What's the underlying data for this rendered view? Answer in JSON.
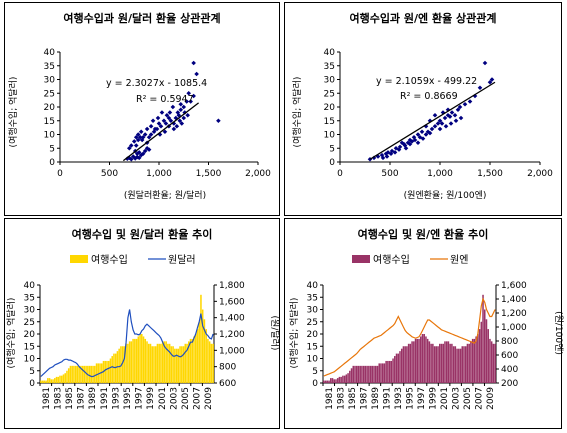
{
  "chart_data": [
    {
      "type": "scatter",
      "title": "여행수입과 원/달러 환율 상관관계",
      "xlabel": "(원달러환율; 원/달러)",
      "ylabel": "(여행수입; 억달러)",
      "xlim": [
        0,
        2000
      ],
      "ylim": [
        0,
        40
      ],
      "xticks": [
        "0",
        "500",
        "1,000",
        "1,500",
        "2,000"
      ],
      "yticks": [
        "0",
        "5",
        "10",
        "15",
        "20",
        "25",
        "30",
        "35",
        "40"
      ],
      "equation": "y = 2.3027x - 1085.4",
      "r2": "R² = 0.5947",
      "trendline": {
        "x": [
          640,
          1400
        ],
        "y": [
          0.5,
          21.5
        ]
      },
      "points": [
        [
          680,
          1.2
        ],
        [
          700,
          1.5
        ],
        [
          720,
          1.0
        ],
        [
          740,
          2.0
        ],
        [
          760,
          1.3
        ],
        [
          780,
          1.8
        ],
        [
          800,
          1.5
        ],
        [
          700,
          5
        ],
        [
          720,
          6
        ],
        [
          750,
          7.5
        ],
        [
          770,
          6
        ],
        [
          790,
          8
        ],
        [
          810,
          9
        ],
        [
          830,
          8
        ],
        [
          760,
          4
        ],
        [
          780,
          3
        ],
        [
          800,
          3.5
        ],
        [
          820,
          2.5
        ],
        [
          840,
          3
        ],
        [
          860,
          4
        ],
        [
          880,
          5
        ],
        [
          900,
          4.5
        ],
        [
          880,
          7
        ],
        [
          900,
          9
        ],
        [
          920,
          10
        ],
        [
          950,
          11
        ],
        [
          980,
          12
        ],
        [
          1000,
          14
        ],
        [
          1020,
          13
        ],
        [
          1050,
          15
        ],
        [
          1080,
          17
        ],
        [
          1100,
          16
        ],
        [
          1120,
          15
        ],
        [
          1150,
          14
        ],
        [
          1170,
          16
        ],
        [
          1190,
          18
        ],
        [
          1200,
          17
        ],
        [
          1220,
          19
        ],
        [
          1250,
          20
        ],
        [
          1280,
          22
        ],
        [
          1300,
          25
        ],
        [
          1320,
          22
        ],
        [
          1350,
          24
        ],
        [
          1380,
          32
        ],
        [
          1350,
          36
        ],
        [
          1150,
          12
        ],
        [
          1100,
          13
        ],
        [
          1060,
          11
        ],
        [
          1010,
          10
        ],
        [
          960,
          12
        ],
        [
          940,
          15
        ],
        [
          920,
          13
        ],
        [
          880,
          12
        ],
        [
          860,
          10
        ],
        [
          840,
          9
        ],
        [
          820,
          11
        ],
        [
          790,
          10
        ],
        [
          770,
          9
        ],
        [
          1180,
          13
        ],
        [
          1210,
          15
        ],
        [
          1230,
          14
        ],
        [
          1260,
          18
        ],
        [
          1290,
          17
        ],
        [
          1600,
          15
        ],
        [
          1220,
          21
        ],
        [
          1250,
          16
        ],
        [
          990,
          16
        ],
        [
          1030,
          18
        ],
        [
          1070,
          14
        ],
        [
          1110,
          18
        ],
        [
          1140,
          20
        ]
      ]
    },
    {
      "type": "scatter",
      "title": "여행수입과 원/엔 환율 상관관계",
      "xlabel": "(원엔환율; 원/100엔)",
      "ylabel": "(여행수입; 억달러)",
      "xlim": [
        0,
        2000
      ],
      "ylim": [
        0,
        40
      ],
      "xticks": [
        "0",
        "500",
        "1,000",
        "1,500",
        "2,000"
      ],
      "yticks": [
        "0",
        "5",
        "10",
        "15",
        "20",
        "25",
        "30",
        "35",
        "40"
      ],
      "equation": "y = 2.1059x - 499.22",
      "r2": "R² = 0.8669",
      "trendline": {
        "x": [
          300,
          1550
        ],
        "y": [
          1,
          29
        ]
      },
      "points": [
        [
          300,
          1.0
        ],
        [
          340,
          1.5
        ],
        [
          380,
          2.0
        ],
        [
          420,
          2.5
        ],
        [
          460,
          3.0
        ],
        [
          480,
          3.5
        ],
        [
          520,
          4.0
        ],
        [
          560,
          5.0
        ],
        [
          600,
          5.5
        ],
        [
          650,
          6
        ],
        [
          680,
          7
        ],
        [
          700,
          6.5
        ],
        [
          720,
          7.5
        ],
        [
          750,
          8
        ],
        [
          780,
          7
        ],
        [
          800,
          9
        ],
        [
          830,
          8.5
        ],
        [
          860,
          10
        ],
        [
          880,
          11
        ],
        [
          900,
          10.5
        ],
        [
          920,
          12
        ],
        [
          950,
          13
        ],
        [
          980,
          14
        ],
        [
          1000,
          15
        ],
        [
          1020,
          14
        ],
        [
          1050,
          16
        ],
        [
          1080,
          17
        ],
        [
          1100,
          16.5
        ],
        [
          1120,
          18
        ],
        [
          1150,
          17
        ],
        [
          1180,
          19
        ],
        [
          1200,
          20
        ],
        [
          1250,
          21
        ],
        [
          1300,
          22
        ],
        [
          1350,
          24
        ],
        [
          1400,
          27
        ],
        [
          1450,
          36
        ],
        [
          1500,
          29
        ],
        [
          1520,
          30
        ],
        [
          1000,
          12
        ],
        [
          950,
          17
        ],
        [
          900,
          15
        ],
        [
          860,
          13
        ],
        [
          820,
          11
        ],
        [
          780,
          10
        ],
        [
          740,
          9
        ],
        [
          700,
          8
        ],
        [
          660,
          5
        ],
        [
          640,
          6.5
        ],
        [
          620,
          7
        ],
        [
          590,
          4.5
        ],
        [
          550,
          3.5
        ],
        [
          510,
          3
        ],
        [
          470,
          2
        ],
        [
          430,
          1.5
        ],
        [
          1060,
          13
        ],
        [
          1110,
          14
        ],
        [
          1160,
          15
        ],
        [
          1210,
          16
        ],
        [
          1080,
          19
        ],
        [
          1030,
          18
        ]
      ]
    },
    {
      "type": "bar",
      "title": "여행수입 및 원/달러 환율 추이",
      "ylabel": "(여행수입; 억달러)",
      "y2label": "(원/달러)",
      "ylim": [
        0,
        40
      ],
      "y2lim": [
        600,
        1800
      ],
      "yticks": [
        "0",
        "5",
        "10",
        "15",
        "20",
        "25",
        "30",
        "35",
        "40"
      ],
      "y2ticks": [
        "600",
        "800",
        "1,000",
        "1,200",
        "1,400",
        "1,600",
        "1,800"
      ],
      "xticks": [
        "1981",
        "1983",
        "1985",
        "1987",
        "1989",
        "1991",
        "1993",
        "1995",
        "1997",
        "1999",
        "2001",
        "2003",
        "2005",
        "2007",
        "2009"
      ],
      "series": [
        {
          "name": "여행수입",
          "kind": "bar",
          "color": "#FFD700",
          "values": [
            1,
            1,
            1,
            1,
            2,
            2,
            1.5,
            1.5,
            2,
            2.5,
            2.5,
            3,
            3,
            3.5,
            4,
            5,
            6,
            7,
            7,
            7,
            7,
            7,
            7,
            7,
            7,
            7,
            7,
            7,
            7,
            7,
            7,
            7,
            8,
            8,
            8,
            8,
            9,
            9,
            9,
            9,
            10,
            11,
            12,
            12,
            13,
            14,
            15,
            15,
            15,
            16,
            16,
            17,
            17,
            18,
            18,
            18,
            19,
            20,
            20,
            19,
            18,
            17,
            16,
            16,
            15,
            15,
            15,
            16,
            16,
            16,
            17,
            17,
            17,
            16,
            16,
            15,
            15,
            14,
            14,
            14,
            15,
            15,
            15,
            16,
            16,
            17,
            18,
            18,
            19,
            20,
            22,
            25,
            36,
            30,
            26,
            22,
            18,
            17,
            16,
            16
          ]
        },
        {
          "name": "원달러",
          "kind": "line",
          "color": "#1F4FBF",
          "values": [
            680,
            700,
            720,
            740,
            760,
            780,
            790,
            800,
            820,
            830,
            840,
            850,
            860,
            880,
            890,
            890,
            880,
            880,
            870,
            860,
            850,
            830,
            800,
            780,
            760,
            740,
            720,
            700,
            690,
            680,
            680,
            690,
            700,
            710,
            720,
            730,
            740,
            760,
            770,
            780,
            790,
            800,
            790,
            790,
            800,
            800,
            810,
            850,
            900,
            1100,
            1400,
            1500,
            1350,
            1250,
            1200,
            1200,
            1190,
            1200,
            1240,
            1260,
            1300,
            1320,
            1300,
            1280,
            1260,
            1240,
            1220,
            1200,
            1180,
            1150,
            1100,
            1050,
            1020,
            1000,
            980,
            950,
            930,
            930,
            940,
            930,
            920,
            930,
            950,
            980,
            1000,
            1050,
            1100,
            1100,
            1150,
            1200,
            1280,
            1350,
            1450,
            1300,
            1250,
            1200,
            1180,
            1150,
            1140,
            1200
          ]
        }
      ]
    },
    {
      "type": "bar",
      "title": "여행수입 및 원/엔 환율 추이",
      "ylabel": "(여행수입; 억달러)",
      "y2label": "(원/100엔)",
      "ylim": [
        0,
        40
      ],
      "y2lim": [
        200,
        1600
      ],
      "yticks": [
        "0",
        "5",
        "10",
        "15",
        "20",
        "25",
        "30",
        "35",
        "40"
      ],
      "y2ticks": [
        "200",
        "400",
        "600",
        "800",
        "1,000",
        "1,200",
        "1,400",
        "1,600"
      ],
      "xticks": [
        "1981",
        "1983",
        "1985",
        "1987",
        "1989",
        "1991",
        "1993",
        "1995",
        "1997",
        "1999",
        "2001",
        "2003",
        "2005",
        "2007",
        "2009"
      ],
      "series": [
        {
          "name": "여행수입",
          "kind": "bar",
          "color": "#993366",
          "values": [
            1,
            1,
            1,
            1,
            2,
            2,
            1.5,
            1.5,
            2,
            2.5,
            2.5,
            3,
            3,
            3.5,
            4,
            5,
            6,
            7,
            7,
            7,
            7,
            7,
            7,
            7,
            7,
            7,
            7,
            7,
            7,
            7,
            7,
            7,
            8,
            8,
            8,
            8,
            9,
            9,
            9,
            9,
            10,
            11,
            12,
            12,
            13,
            14,
            15,
            15,
            15,
            16,
            16,
            17,
            17,
            18,
            18,
            18,
            19,
            20,
            20,
            19,
            18,
            17,
            16,
            16,
            15,
            15,
            15,
            16,
            16,
            16,
            17,
            17,
            17,
            16,
            16,
            15,
            15,
            14,
            14,
            14,
            15,
            15,
            15,
            16,
            16,
            17,
            18,
            18,
            19,
            20,
            22,
            25,
            36,
            30,
            26,
            22,
            18,
            17,
            16,
            16
          ]
        },
        {
          "name": "원엔",
          "kind": "line",
          "color": "#E8760A",
          "values": [
            300,
            310,
            320,
            330,
            340,
            350,
            360,
            380,
            400,
            420,
            440,
            460,
            480,
            500,
            520,
            540,
            560,
            580,
            600,
            620,
            650,
            680,
            700,
            720,
            740,
            760,
            780,
            800,
            820,
            840,
            850,
            860,
            870,
            880,
            900,
            920,
            940,
            960,
            980,
            1000,
            1020,
            1050,
            1100,
            1150,
            1100,
            1050,
            1000,
            950,
            920,
            900,
            880,
            860,
            850,
            840,
            850,
            860,
            900,
            950,
            1000,
            1050,
            1100,
            1100,
            1080,
            1060,
            1040,
            1020,
            1000,
            980,
            960,
            950,
            940,
            930,
            920,
            910,
            900,
            890,
            880,
            870,
            860,
            850,
            840,
            830,
            820,
            810,
            800,
            790,
            780,
            770,
            800,
            900,
            1100,
            1300,
            1400,
            1350,
            1250,
            1200,
            1150,
            1150,
            1200,
            1250
          ]
        }
      ]
    }
  ]
}
